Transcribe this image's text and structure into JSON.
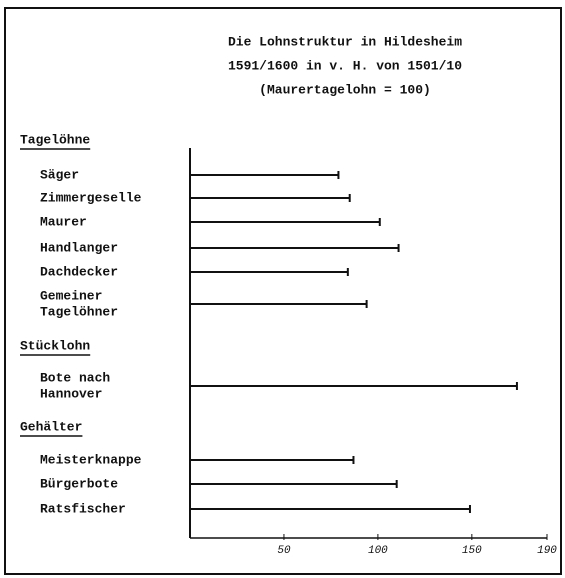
{
  "chart_data": {
    "type": "bar",
    "title": [
      "Die Lohnstruktur in Hildesheim",
      "1591/1600 in v. H. von 1501/10",
      "(Maurertagelohn = 100)"
    ],
    "groups": [
      {
        "name": "Tagelöhne",
        "categories": [
          [
            "Säger"
          ],
          [
            "Zimmergeselle"
          ],
          [
            "Maurer"
          ],
          [
            "Handlanger"
          ],
          [
            "Dachdecker"
          ],
          [
            "Gemeiner",
            "Tagelöhner"
          ]
        ],
        "values": [
          79,
          85,
          101,
          111,
          84,
          94
        ]
      },
      {
        "name": "Stücklohn",
        "categories": [
          [
            "Bote nach",
            "Hannover"
          ]
        ],
        "values": [
          174
        ]
      },
      {
        "name": "Gehälter",
        "categories": [
          [
            "Meisterknappe"
          ],
          [
            "Bürgerbote"
          ],
          [
            "Ratsfischer"
          ]
        ],
        "values": [
          87,
          110,
          149
        ]
      }
    ],
    "color": "#111111",
    "xlim": [
      0,
      190
    ],
    "xticks": [
      50,
      100,
      150,
      190
    ]
  }
}
